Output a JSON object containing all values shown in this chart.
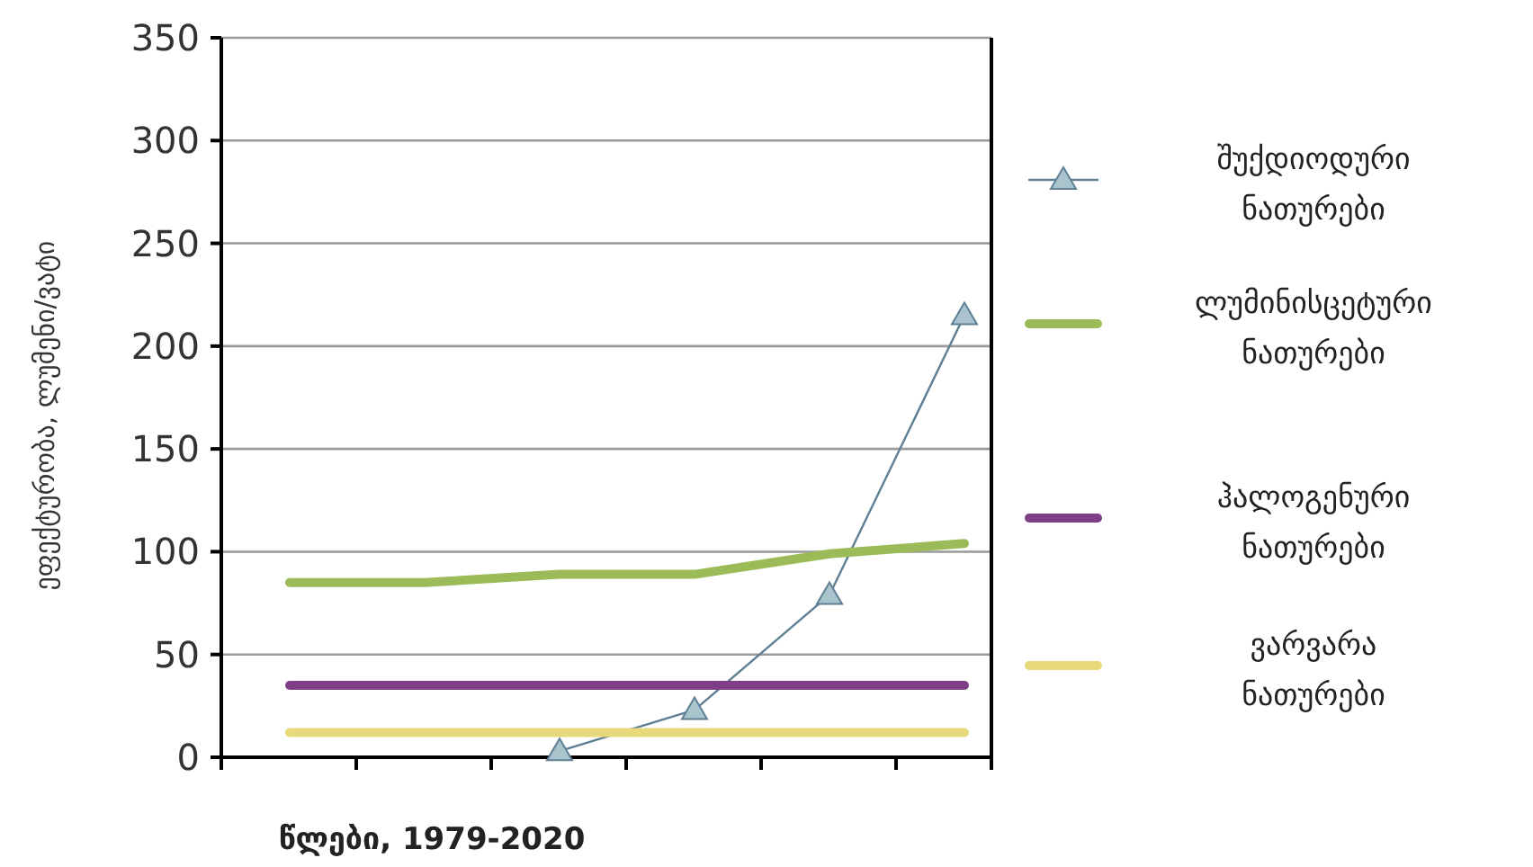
{
  "chart_data": {
    "type": "line",
    "ylabel": "ეფექტურობა, ლუმენი/ვატი",
    "xlabel": "წლები, 1979-2020",
    "categories": [
      null,
      null,
      null,
      null,
      null,
      null
    ],
    "series": [
      {
        "name": "შუქდიოდური ნათურები",
        "color": "#5f7f94",
        "marker": "triangle",
        "values": [
          null,
          null,
          3,
          23,
          79,
          215
        ]
      },
      {
        "name": "ლუმინისცეტური ნათურები",
        "color": "#9bbb59",
        "marker": "none",
        "values": [
          85,
          85,
          89,
          89,
          99,
          104
        ]
      },
      {
        "name": "ჰალოგენური ნათურები",
        "color": "#7f3f86",
        "marker": "none",
        "values": [
          35,
          35,
          35,
          35,
          35,
          35
        ]
      },
      {
        "name": "ვარვარა ნათურები",
        "color": "#e8d97a",
        "marker": "none",
        "values": [
          12,
          12,
          12,
          12,
          12,
          12
        ]
      }
    ],
    "ylim": [
      0,
      350
    ],
    "yticks": [
      0,
      50,
      100,
      150,
      200,
      250,
      300,
      350
    ],
    "grid": "y",
    "legend": "right"
  }
}
